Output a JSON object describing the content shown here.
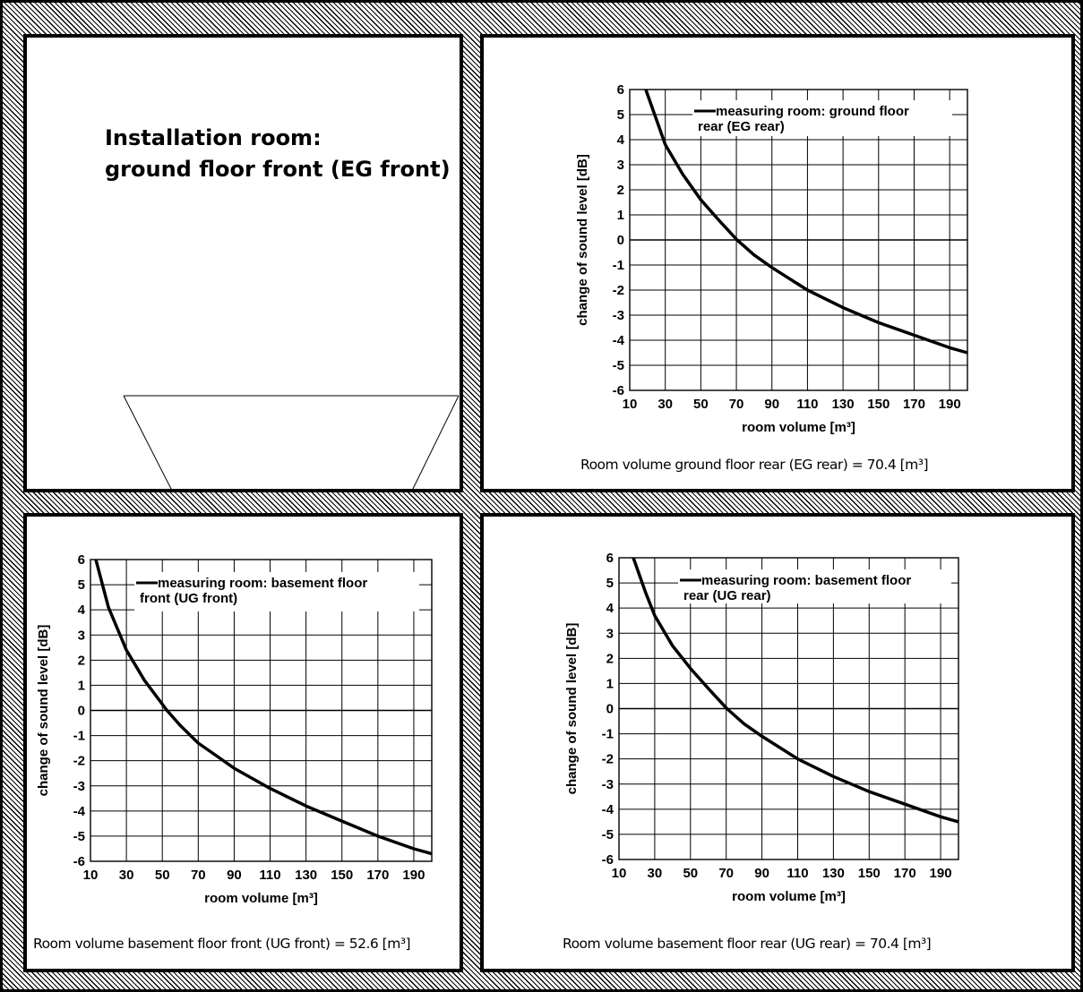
{
  "installation": {
    "title_line1": "Installation room:",
    "title_line2": "ground floor front (EG front)"
  },
  "chart_data": [
    {
      "type": "line",
      "legend_line1": "measuring room: ground floor",
      "legend_line2": "rear (EG rear)",
      "xlabel": "room volume [m³]",
      "ylabel": "change of sound level [dB]",
      "xlim": [
        10,
        200
      ],
      "ylim": [
        -6,
        6
      ],
      "xticks": [
        10,
        30,
        50,
        70,
        90,
        110,
        130,
        150,
        170,
        190
      ],
      "yticks": [
        6,
        5,
        4,
        3,
        2,
        1,
        0,
        -1,
        -2,
        -3,
        -4,
        -5,
        -6
      ],
      "grid": true,
      "legend_position": "top-right",
      "x": [
        19,
        25,
        30,
        40,
        50,
        60,
        70.4,
        80,
        90,
        110,
        130,
        150,
        170,
        190,
        200
      ],
      "y": [
        6,
        4.8,
        3.8,
        2.6,
        1.6,
        0.8,
        0,
        -0.6,
        -1.1,
        -2.0,
        -2.7,
        -3.3,
        -3.8,
        -4.3,
        -4.5
      ],
      "caption": "Room volume ground floor rear (EG rear) = 70.4 [m³]"
    },
    {
      "type": "line",
      "legend_line1": "measuring room: basement floor",
      "legend_line2": "front (UG front)",
      "xlabel": "room volume [m³]",
      "ylabel": "change of sound level [dB]",
      "xlim": [
        10,
        200
      ],
      "ylim": [
        -6,
        6
      ],
      "xticks": [
        10,
        30,
        50,
        70,
        90,
        110,
        130,
        150,
        170,
        190
      ],
      "yticks": [
        6,
        5,
        4,
        3,
        2,
        1,
        0,
        -1,
        -2,
        -3,
        -4,
        -5,
        -6
      ],
      "grid": true,
      "legend_position": "top-right",
      "x": [
        13,
        20,
        30,
        40,
        52.6,
        60,
        70,
        80,
        90,
        110,
        130,
        150,
        170,
        190,
        200
      ],
      "y": [
        6,
        4.1,
        2.4,
        1.2,
        0,
        -0.6,
        -1.3,
        -1.8,
        -2.3,
        -3.1,
        -3.8,
        -4.4,
        -5.0,
        -5.5,
        -5.7
      ],
      "caption": "Room volume basement floor front (UG front) = 52.6 [m³]"
    },
    {
      "type": "line",
      "legend_line1": "measuring room: basement floor",
      "legend_line2": "rear (UG rear)",
      "xlabel": "room volume [m³]",
      "ylabel": "change of sound level [dB]",
      "xlim": [
        10,
        200
      ],
      "ylim": [
        -6,
        6
      ],
      "xticks": [
        10,
        30,
        50,
        70,
        90,
        110,
        130,
        150,
        170,
        190
      ],
      "yticks": [
        6,
        5,
        4,
        3,
        2,
        1,
        0,
        -1,
        -2,
        -3,
        -4,
        -5,
        -6
      ],
      "grid": true,
      "legend_position": "top-right",
      "x": [
        18,
        25,
        30,
        40,
        50,
        60,
        70.4,
        80,
        90,
        110,
        130,
        150,
        170,
        190,
        200
      ],
      "y": [
        6,
        4.6,
        3.7,
        2.5,
        1.6,
        0.8,
        0,
        -0.6,
        -1.1,
        -2.0,
        -2.7,
        -3.3,
        -3.8,
        -4.3,
        -4.5
      ],
      "caption": "Room volume basement floor rear (UG rear) = 70.4 [m³]"
    }
  ]
}
